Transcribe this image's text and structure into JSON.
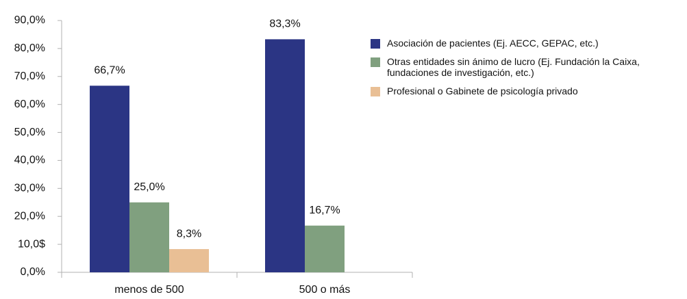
{
  "chart_data": {
    "type": "bar",
    "categories": [
      "menos de 500",
      "500 o más"
    ],
    "series": [
      {
        "name": "Asociación de pacientes (Ej. AECC, GEPAC, etc.)",
        "color": "#2b3584",
        "values": [
          66.7,
          83.3
        ],
        "value_labels": [
          "66,7%",
          "83,3%"
        ]
      },
      {
        "name": "Otras entidades sin ánimo de lucro (Ej. Fundación la Caixa, fundaciones de investigación, etc.)",
        "color": "#80a07f",
        "values": [
          25.0,
          16.7
        ],
        "value_labels": [
          "25,0%",
          "16,7%"
        ]
      },
      {
        "name": "Profesional o Gabinete de psicología privado",
        "color": "#e9bf95",
        "values": [
          8.3,
          null
        ],
        "value_labels": [
          "8,3%",
          null
        ]
      }
    ],
    "ylim": [
      0,
      90
    ],
    "yticks": [
      {
        "value": 0,
        "label": "0,0%"
      },
      {
        "value": 10,
        "label": "10,0$"
      },
      {
        "value": 20,
        "label": "20,0%"
      },
      {
        "value": 30,
        "label": "30,0%"
      },
      {
        "value": 40,
        "label": "40,0%"
      },
      {
        "value": 50,
        "label": "50,0%"
      },
      {
        "value": 60,
        "label": "60,0%"
      },
      {
        "value": 70,
        "label": "70,0%"
      },
      {
        "value": 80,
        "label": "80,0%"
      },
      {
        "value": 90,
        "label": "90,0%"
      }
    ],
    "grid": false,
    "legend": "right"
  }
}
